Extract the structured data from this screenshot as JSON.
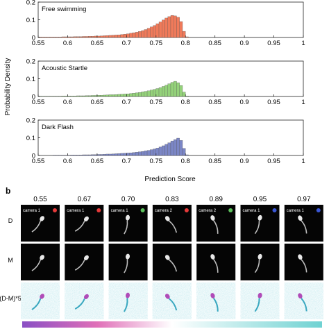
{
  "figure": {
    "panel_b_label": "b",
    "x_axis_label": "Prediction Score",
    "y_axis_label": "Probability Density",
    "row_labels": [
      "D",
      "M",
      "(D-M)*5"
    ],
    "camera_labels": [
      "camera 1",
      "camera 1",
      "camera 1",
      "camera 2",
      "camera 2",
      "camera 1",
      "camera 1"
    ],
    "frame_scores": [
      "0.55",
      "0.67",
      "0.70",
      "0.83",
      "0.89",
      "0.95",
      "0.97"
    ],
    "frame_dot_colors": [
      "#e63a3a",
      "#e63a3a",
      "#5cc15c",
      "#e63a3a",
      "#5cc15c",
      "#3a57d6",
      "#3a57d6"
    ],
    "colorbar_colors": [
      "#8a4fc4",
      "#e070b8",
      "#ffffff",
      "#6fd2d2"
    ]
  },
  "chart_data": [
    {
      "type": "bar",
      "title": "Free swimming",
      "color": "#f07a5a",
      "xlabel": "",
      "ylabel": "Probability Density",
      "xlim": [
        0.55,
        1
      ],
      "ylim": [
        0,
        0.2
      ],
      "xticks": [
        "0.55",
        "0.6",
        "0.65",
        "0.7",
        "0.75",
        "0.8",
        "0.85",
        "0.9",
        "0.95",
        "1"
      ],
      "yticks": [
        "0",
        "0.1",
        "0.2"
      ],
      "bin_start": 0.55,
      "bin_width": 0.005,
      "values": [
        0.003,
        0.003,
        0.003,
        0.003,
        0.003,
        0.003,
        0.003,
        0.003,
        0.004,
        0.004,
        0.004,
        0.004,
        0.005,
        0.005,
        0.005,
        0.006,
        0.006,
        0.007,
        0.007,
        0.008,
        0.008,
        0.009,
        0.01,
        0.011,
        0.012,
        0.013,
        0.014,
        0.015,
        0.017,
        0.019,
        0.021,
        0.024,
        0.027,
        0.03,
        0.034,
        0.039,
        0.045,
        0.052,
        0.06,
        0.068,
        0.078,
        0.088,
        0.099,
        0.11,
        0.118,
        0.125,
        0.122,
        0.114,
        0.09,
        0.035,
        0.004
      ]
    },
    {
      "type": "bar",
      "title": "Acoustic Startle",
      "color": "#94d27a",
      "xlabel": "",
      "ylabel": "Probability Density",
      "xlim": [
        0.55,
        1
      ],
      "ylim": [
        0,
        0.2
      ],
      "xticks": [
        "0.55",
        "0.6",
        "0.65",
        "0.7",
        "0.75",
        "0.8",
        "0.85",
        "0.9",
        "0.95",
        "1"
      ],
      "yticks": [
        "0",
        "0.1",
        "0.2"
      ],
      "bin_start": 0.55,
      "bin_width": 0.005,
      "values": [
        0.002,
        0.002,
        0.002,
        0.002,
        0.002,
        0.002,
        0.002,
        0.002,
        0.003,
        0.003,
        0.003,
        0.003,
        0.003,
        0.004,
        0.004,
        0.004,
        0.005,
        0.005,
        0.006,
        0.006,
        0.007,
        0.007,
        0.008,
        0.009,
        0.01,
        0.01,
        0.011,
        0.012,
        0.013,
        0.014,
        0.015,
        0.017,
        0.019,
        0.021,
        0.023,
        0.026,
        0.029,
        0.032,
        0.036,
        0.04,
        0.045,
        0.05,
        0.057,
        0.064,
        0.072,
        0.08,
        0.086,
        0.078,
        0.062,
        0.025,
        0.003
      ]
    },
    {
      "type": "bar",
      "title": "Dark Flash",
      "color": "#7b86c6",
      "xlabel": "Prediction Score",
      "ylabel": "Probability Density",
      "xlim": [
        0.55,
        1
      ],
      "ylim": [
        0,
        0.2
      ],
      "xticks": [
        "0.55",
        "0.6",
        "0.65",
        "0.7",
        "0.75",
        "0.8",
        "0.85",
        "0.9",
        "0.95",
        "1"
      ],
      "yticks": [
        "0",
        "0.1",
        "0.2"
      ],
      "bin_start": 0.55,
      "bin_width": 0.005,
      "values": [
        0.001,
        0.001,
        0.001,
        0.001,
        0.001,
        0.002,
        0.002,
        0.002,
        0.002,
        0.002,
        0.002,
        0.003,
        0.003,
        0.003,
        0.003,
        0.004,
        0.004,
        0.004,
        0.005,
        0.005,
        0.006,
        0.006,
        0.007,
        0.008,
        0.008,
        0.009,
        0.01,
        0.011,
        0.012,
        0.013,
        0.014,
        0.015,
        0.017,
        0.019,
        0.021,
        0.023,
        0.026,
        0.029,
        0.033,
        0.037,
        0.042,
        0.048,
        0.055,
        0.063,
        0.072,
        0.082,
        0.09,
        0.098,
        0.085,
        0.04,
        0.004
      ]
    }
  ]
}
